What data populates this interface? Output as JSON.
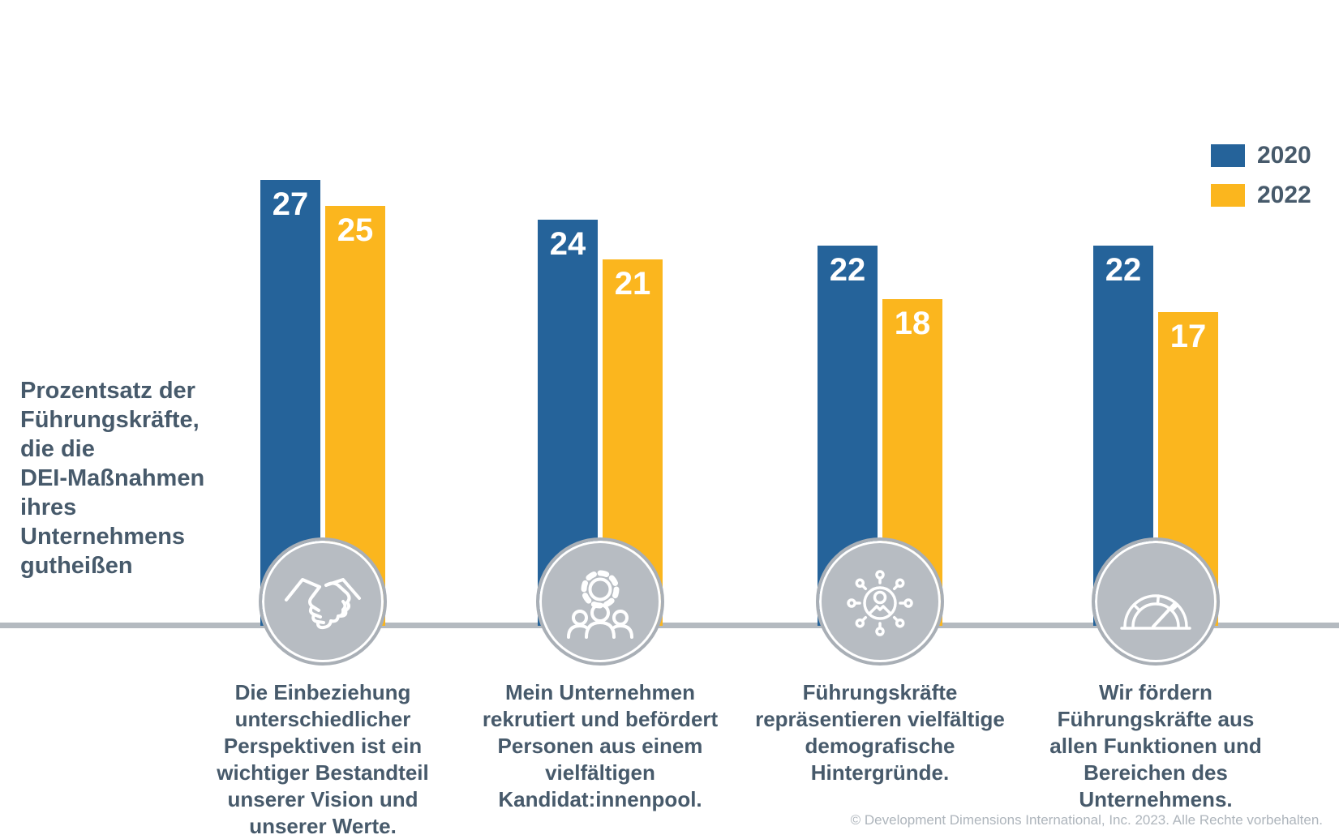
{
  "chart_data": {
    "type": "bar",
    "title": "Prozentsatz der Führungskräfte, die die DEI-Maßnahmen ihres Unternehmens gutheißen",
    "title_lines": [
      "Prozentsatz der",
      "Führungskräfte,",
      "die die",
      "DEI-Maßnahmen",
      "ihres",
      "Unternehmens",
      "gutheißen"
    ],
    "legend_position": "top-right",
    "value_labels": "inside-top",
    "grid": false,
    "axes_shown": false,
    "series": [
      {
        "name": "2020",
        "color": "#25639A",
        "values": [
          27,
          24,
          22,
          22
        ]
      },
      {
        "name": "2022",
        "color": "#FBB61E",
        "values": [
          25,
          21,
          18,
          17
        ]
      }
    ],
    "categories": [
      [
        "Die Einbeziehung",
        "unterschiedlicher",
        "Perspektiven ist ein",
        "wichtiger Bestandteil",
        "unserer Vision und",
        "unserer Werte."
      ],
      [
        "Mein Unternehmen",
        "rekrutiert und befördert",
        "Personen aus einem",
        "vielfältigen",
        "Kandidat:innenpool."
      ],
      [
        "Führungskräfte",
        "repräsentieren vielfältige",
        "demografische",
        "Hintergründe."
      ],
      [
        "Wir fördern",
        "Führungskräfte aus",
        "allen Funktionen und",
        "Bereichen des",
        "Unternehmens."
      ]
    ],
    "icons": [
      "handshake-icon",
      "gear-people-icon",
      "person-network-icon",
      "gauge-icon"
    ],
    "colors": {
      "bar_2020": "#25639A",
      "bar_2022": "#FBB61E",
      "text": "#475A6B",
      "icon_circle_fill": "#B7BCC2",
      "icon_circle_ring": "#A9AFB6",
      "baseline": "#B4BAC0",
      "value_label": "#FFFFFF",
      "footer_text": "#AEB5BC"
    }
  },
  "footer": {
    "copyright": "© Development Dimensions International, Inc. 2023. Alle Rechte vorbehalten."
  }
}
